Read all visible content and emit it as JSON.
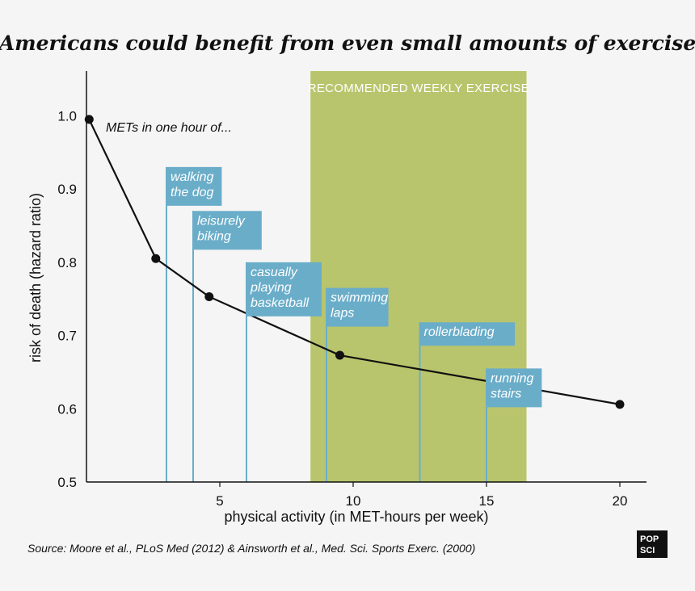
{
  "chart_data": {
    "type": "line",
    "title": "Americans could benefit from even small amounts of exercise",
    "xlabel": "physical activity (in MET-hours per week)",
    "ylabel": "risk of death  (hazard ratio)",
    "xlim": [
      0,
      21
    ],
    "ylim": [
      0.5,
      1.05
    ],
    "xticks": [
      "5",
      "10",
      "15",
      "20"
    ],
    "xtick_values": [
      5,
      10,
      15,
      20
    ],
    "yticks": [
      "1.0",
      "0.9",
      "0.8",
      "0.7",
      "0.6",
      "0.5"
    ],
    "ytick_values": [
      1.0,
      0.9,
      0.8,
      0.7,
      0.6,
      0.5
    ],
    "grid": false,
    "series": [
      {
        "x": [
          0.1,
          2.6,
          4.6,
          9.5,
          20.0
        ],
        "values": [
          0.995,
          0.805,
          0.753,
          0.673,
          0.606
        ],
        "color": "#111111"
      }
    ],
    "recommended_range": {
      "label": "RECOMMENDED WEEKLY EXERCISE",
      "x_start": 8.4,
      "x_end": 16.5,
      "color": "#b9c56c"
    },
    "note": "METs in one hour of...",
    "activities": [
      {
        "name": "walking-the-dog",
        "x": 3.0,
        "label_top": 0.93,
        "lines": [
          "walking",
          "the dog"
        ]
      },
      {
        "name": "leisurely-biking",
        "x": 4.0,
        "label_top": 0.87,
        "lines": [
          "leisurely",
          "biking"
        ]
      },
      {
        "name": "casually-playing-basketball",
        "x": 6.0,
        "label_top": 0.8,
        "lines": [
          "casually",
          "playing",
          "basketball"
        ]
      },
      {
        "name": "swimming-laps",
        "x": 9.0,
        "label_top": 0.765,
        "lines": [
          "swimming",
          "laps"
        ]
      },
      {
        "name": "rollerblading",
        "x": 12.5,
        "label_top": 0.718,
        "lines": [
          "rollerblading"
        ]
      },
      {
        "name": "running-stairs",
        "x": 15.0,
        "label_top": 0.655,
        "lines": [
          "running",
          "stairs"
        ]
      }
    ],
    "activity_color": "#6aadc9",
    "source": "Source: Moore et al., PLoS Med (2012) & Ainsworth et al., Med. Sci. Sports Exerc. (2000)",
    "logo": [
      "POP",
      "SCI"
    ]
  }
}
